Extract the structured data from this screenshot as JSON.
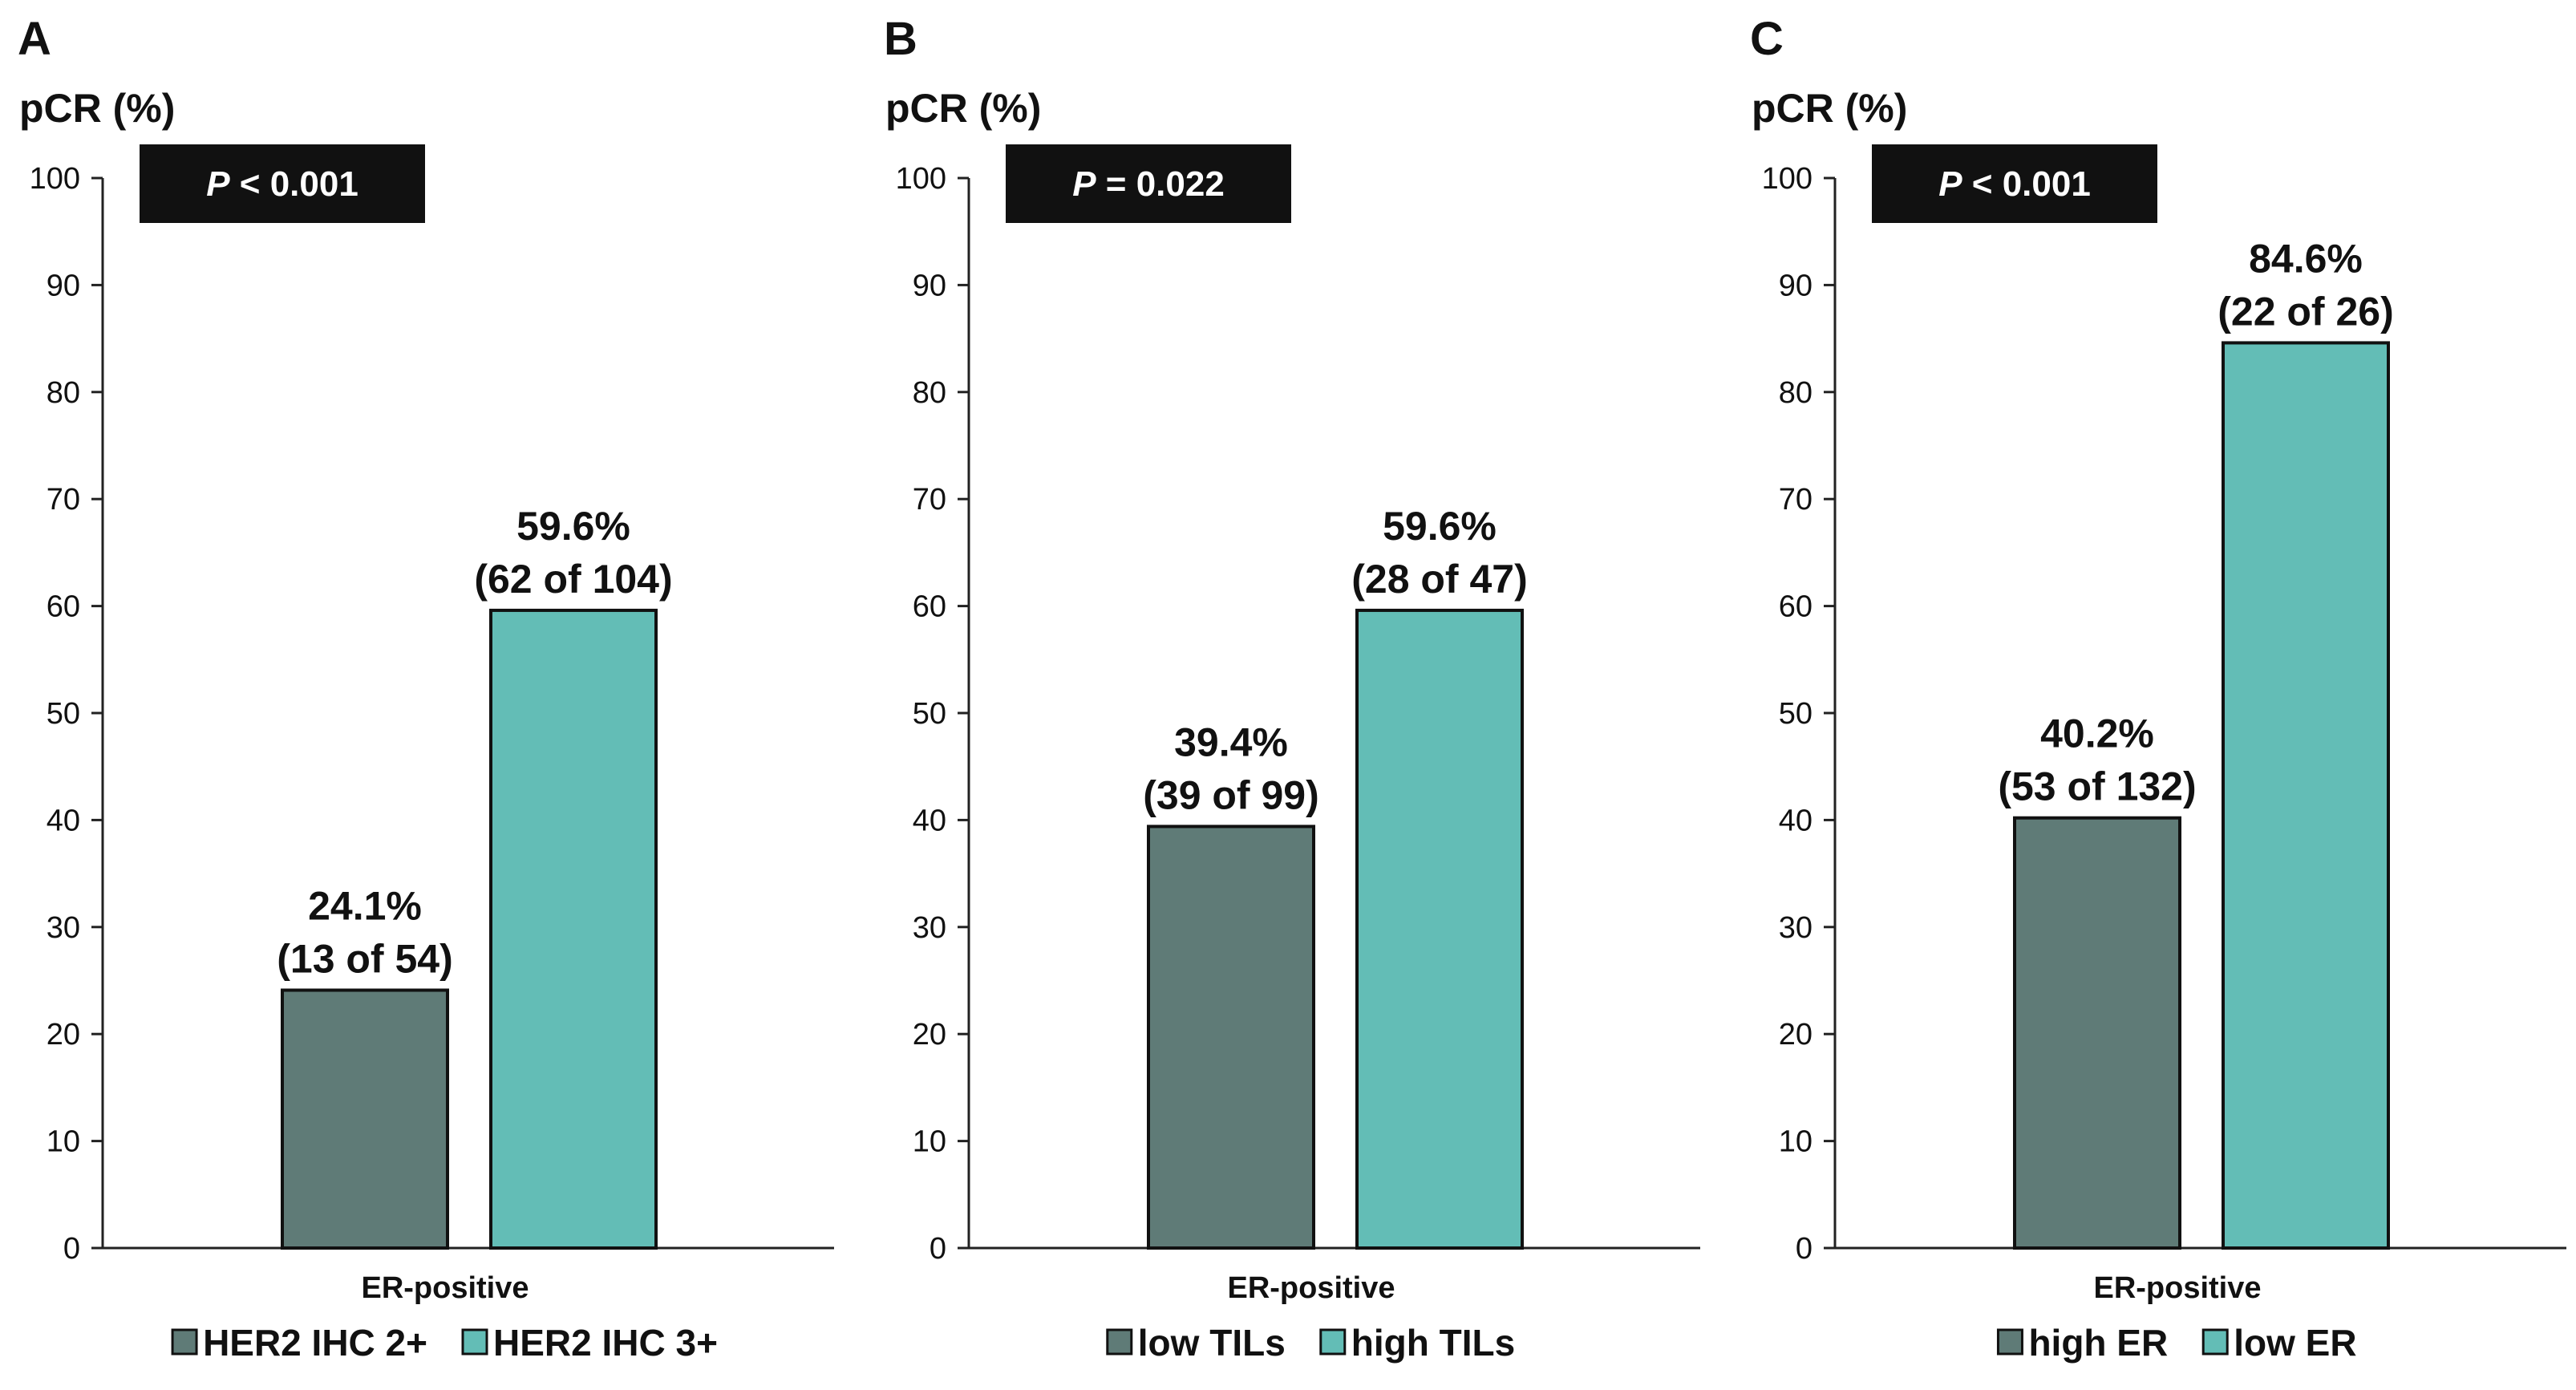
{
  "chart_data": [
    {
      "type": "bar",
      "panel": "A",
      "ylabel": "pCR (%)",
      "ylim": [
        0,
        100
      ],
      "yticks": [
        "0",
        "10",
        "20",
        "30",
        "40",
        "50",
        "60",
        "70",
        "80",
        "90",
        "100"
      ],
      "p_italic": "P",
      "p_rest": " < 0.001",
      "category": "ER-positive",
      "series": [
        {
          "name": "HER2 IHC 2+",
          "value": 24.1,
          "label_pct": "24.1%",
          "label_n": "(13 of 54)",
          "color": "#5f7b77"
        },
        {
          "name": "HER2 IHC 3+",
          "value": 59.6,
          "label_pct": "59.6%",
          "label_n": "(62 of 104)",
          "color": "#63bdb6"
        }
      ]
    },
    {
      "type": "bar",
      "panel": "B",
      "ylabel": "pCR (%)",
      "ylim": [
        0,
        100
      ],
      "yticks": [
        "0",
        "10",
        "20",
        "30",
        "40",
        "50",
        "60",
        "70",
        "80",
        "90",
        "100"
      ],
      "p_italic": "P",
      "p_rest": " = 0.022",
      "category": "ER-positive",
      "series": [
        {
          "name": "low TILs",
          "value": 39.4,
          "label_pct": "39.4%",
          "label_n": "(39 of 99)",
          "color": "#5f7b77"
        },
        {
          "name": "high TILs",
          "value": 59.6,
          "label_pct": "59.6%",
          "label_n": "(28 of 47)",
          "color": "#63bdb6"
        }
      ]
    },
    {
      "type": "bar",
      "panel": "C",
      "ylabel": "pCR (%)",
      "ylim": [
        0,
        100
      ],
      "yticks": [
        "0",
        "10",
        "20",
        "30",
        "40",
        "50",
        "60",
        "70",
        "80",
        "90",
        "100"
      ],
      "p_italic": "P",
      "p_rest": " < 0.001",
      "category": "ER-positive",
      "series": [
        {
          "name": "high ER",
          "value": 40.2,
          "label_pct": "40.2%",
          "label_n": "(53 of 132)",
          "color": "#5f7b77"
        },
        {
          "name": "low ER",
          "value": 84.6,
          "label_pct": "84.6%",
          "label_n": "(22 of 26)",
          "color": "#63bdb6"
        }
      ]
    }
  ]
}
